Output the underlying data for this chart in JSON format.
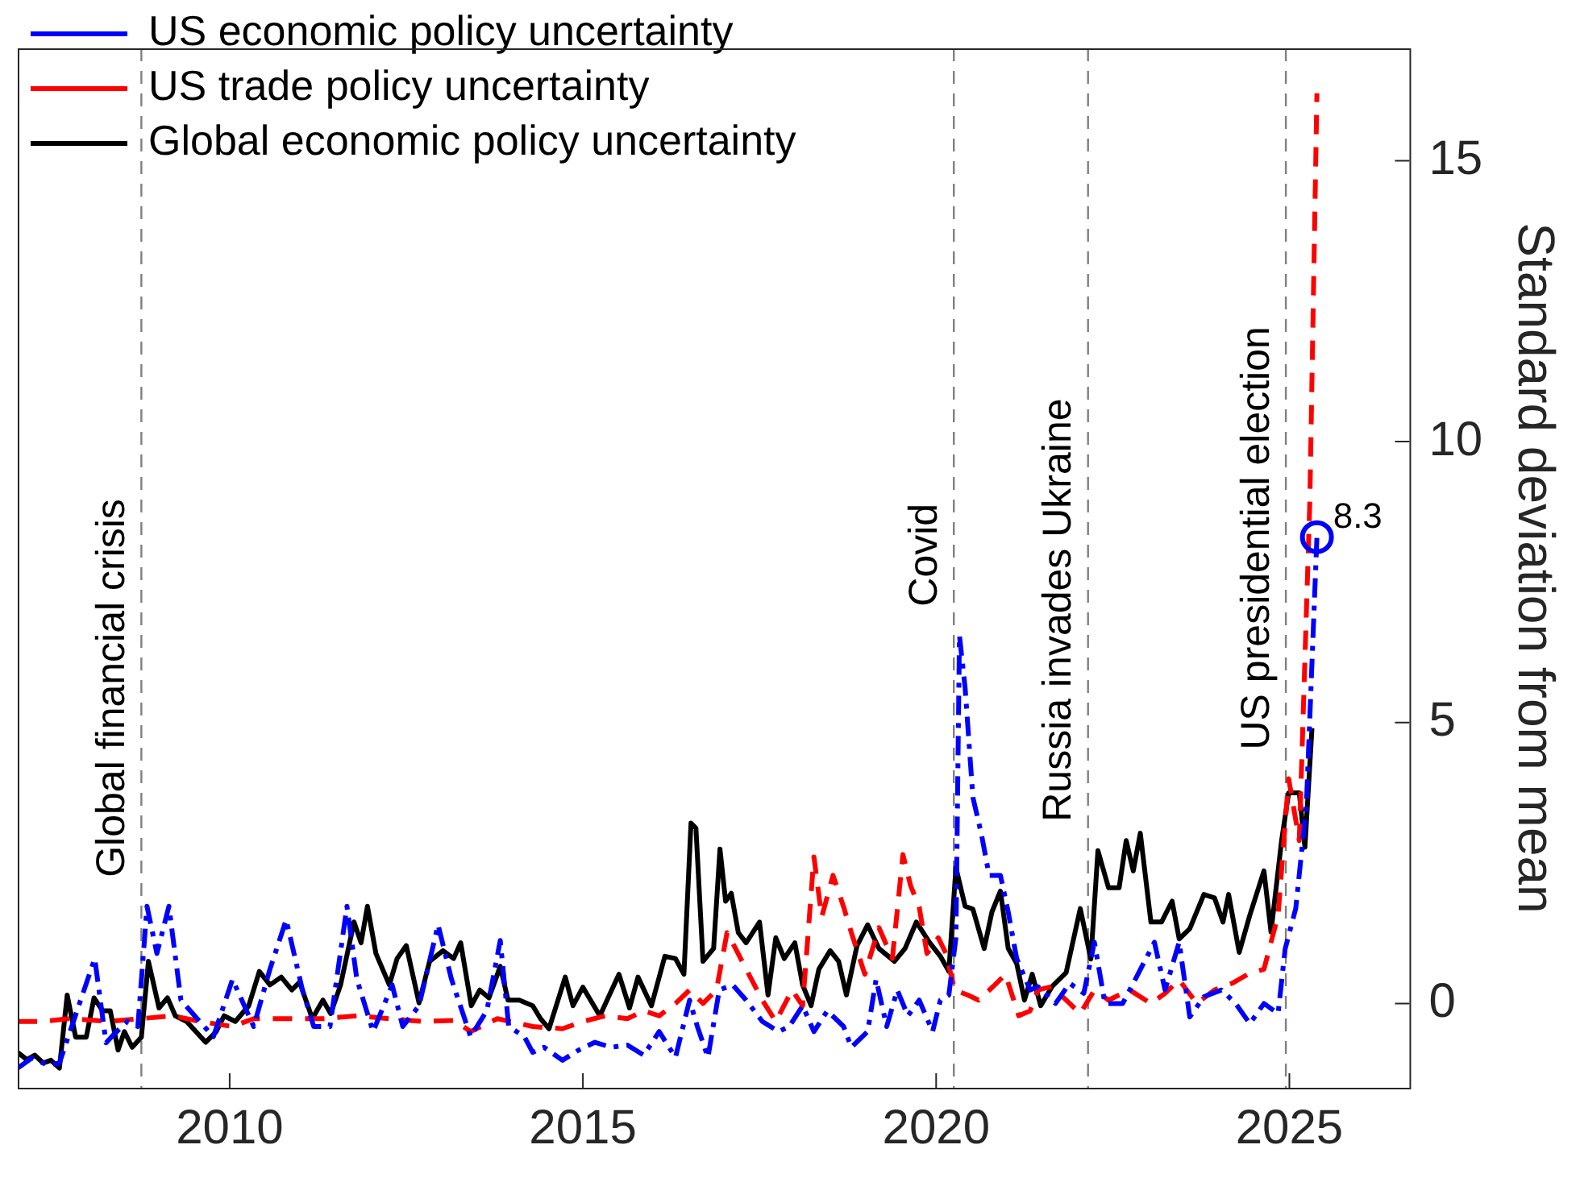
{
  "chart_data": {
    "type": "line",
    "ylabel": "Standard deviation from mean",
    "xlim": [
      2007,
      2026.7
    ],
    "ylim": [
      -1.5,
      17
    ],
    "xticks": [
      2010,
      2015,
      2020,
      2025
    ],
    "yticks": [
      0,
      5,
      10,
      15
    ],
    "legend": "top left",
    "series": [
      {
        "name": "US economic policy uncertainty",
        "color": "#0000ff",
        "line_style": "dashdot",
        "x": [
          2007.0,
          2007.2,
          2007.43,
          2007.59,
          2007.74,
          2008.09,
          2008.25,
          2008.36,
          2008.55,
          2008.7,
          2008.83,
          2008.97,
          2009.14,
          2009.31,
          2009.54,
          2009.77,
          2010.04,
          2010.34,
          2010.57,
          2010.8,
          2011.03,
          2011.19,
          2011.42,
          2011.66,
          2011.8,
          2012.03,
          2012.3,
          2012.45,
          2012.68,
          2012.95,
          2013.14,
          2013.41,
          2013.64,
          2013.83,
          2013.95,
          2014.17,
          2014.29,
          2014.45,
          2014.71,
          2014.94,
          2015.17,
          2015.4,
          2015.63,
          2015.86,
          2016.08,
          2016.31,
          2016.51,
          2016.62,
          2016.77,
          2016.93,
          2017.12,
          2017.31,
          2017.54,
          2017.77,
          2017.92,
          2018.11,
          2018.27,
          2018.46,
          2018.69,
          2018.8,
          2019.03,
          2019.15,
          2019.3,
          2019.45,
          2019.6,
          2019.76,
          2019.95,
          2020.06,
          2020.18,
          2020.28,
          2020.33,
          2020.41,
          2020.52,
          2020.64,
          2020.75,
          2020.91,
          2021.02,
          2021.14,
          2021.33,
          2021.44,
          2021.69,
          2021.89,
          2022.09,
          2022.24,
          2022.39,
          2022.64,
          2022.84,
          2023.09,
          2023.24,
          2023.44,
          2023.59,
          2023.79,
          2024.04,
          2024.24,
          2024.44,
          2024.64,
          2024.84,
          2024.94,
          2025.09,
          2025.24,
          2025.39
        ],
        "values": [
          -1.15,
          -0.97,
          -1.1,
          -1.06,
          -0.5,
          0.8,
          -0.7,
          -0.55,
          -0.32,
          -0.41,
          1.73,
          0.89,
          1.73,
          0.06,
          -0.27,
          -0.59,
          0.43,
          -0.41,
          0.61,
          1.49,
          0.24,
          -0.41,
          -0.41,
          1.73,
          0.43,
          -0.5,
          0.33,
          -0.41,
          -0.04,
          1.4,
          0.43,
          -0.59,
          -0.13,
          1.12,
          -0.41,
          -0.59,
          -0.87,
          -0.78,
          -1.01,
          -0.83,
          -0.69,
          -0.78,
          -0.74,
          -0.92,
          -0.5,
          -0.96,
          0.06,
          -0.41,
          -0.96,
          0.24,
          0.33,
          0.06,
          -0.32,
          -0.5,
          -0.41,
          -0.04,
          -0.5,
          -0.13,
          -0.41,
          -0.78,
          -0.5,
          0.43,
          -0.41,
          0.24,
          -0.22,
          0.06,
          -0.5,
          0.06,
          0.15,
          1.17,
          6.55,
          5.62,
          3.67,
          3.02,
          2.28,
          2.28,
          1.63,
          0.8,
          0.24,
          0.3,
          0,
          0.36,
          0.18,
          1.09,
          0,
          0,
          0.48,
          1.09,
          0.24,
          1.09,
          -0.24,
          0.12,
          0.24,
          0,
          -0.36,
          0,
          -0.18,
          0.97,
          1.69,
          3.51,
          8.3
        ]
      },
      {
        "name": "US trade policy uncertainty",
        "color": "#ff0000",
        "line_style": "dashed",
        "x": [
          2007.0,
          2007.36,
          2007.74,
          2008.28,
          2008.74,
          2009.2,
          2009.58,
          2010.04,
          2010.34,
          2010.8,
          2011.34,
          2011.8,
          2012.26,
          2012.72,
          2013.18,
          2013.41,
          2013.79,
          2014.29,
          2014.71,
          2015.0,
          2015.32,
          2015.63,
          2015.86,
          2016.08,
          2016.31,
          2016.51,
          2016.7,
          2016.89,
          2017.04,
          2017.16,
          2017.31,
          2017.54,
          2017.73,
          2017.96,
          2018.11,
          2018.27,
          2018.38,
          2018.54,
          2018.69,
          2018.8,
          2018.99,
          2019.19,
          2019.38,
          2019.53,
          2019.64,
          2019.76,
          2019.87,
          2020.03,
          2020.14,
          2020.26,
          2020.45,
          2020.6,
          2020.83,
          2020.98,
          2021.17,
          2021.33,
          2021.44,
          2021.64,
          2021.89,
          2022.04,
          2022.24,
          2022.44,
          2022.74,
          2023.04,
          2023.24,
          2023.44,
          2023.69,
          2023.94,
          2024.19,
          2024.44,
          2024.64,
          2024.84,
          2024.99,
          2025.14,
          2025.29,
          2025.39
        ],
        "values": [
          -0.32,
          -0.32,
          -0.27,
          -0.32,
          -0.27,
          -0.22,
          -0.32,
          -0.41,
          -0.27,
          -0.27,
          -0.27,
          -0.22,
          -0.27,
          -0.32,
          -0.3,
          -0.5,
          -0.27,
          -0.41,
          -0.45,
          -0.32,
          -0.22,
          -0.27,
          -0.13,
          -0.22,
          0.0,
          0.24,
          0.0,
          0.24,
          1.26,
          0.98,
          0.61,
          0.06,
          -0.32,
          0.24,
          -0.04,
          2.61,
          1.54,
          2.28,
          1.72,
          1.26,
          0.52,
          1.35,
          0.8,
          2.65,
          2.09,
          1.72,
          0.89,
          1.17,
          0.89,
          0.24,
          0.15,
          0.06,
          0.33,
          0.52,
          -0.22,
          -0.13,
          0.24,
          0.3,
          0,
          -0.18,
          0.24,
          0.06,
          0.24,
          0,
          0.18,
          0.42,
          0,
          0.24,
          0.36,
          0.54,
          0.61,
          1.57,
          4.0,
          2.9,
          8.96,
          16.2
        ]
      },
      {
        "name": "Global economic policy uncertainty",
        "color": "#000000",
        "line_style": "solid",
        "x": [
          2007.0,
          2007.13,
          2007.24,
          2007.36,
          2007.47,
          2007.59,
          2007.7,
          2007.82,
          2007.97,
          2008.08,
          2008.2,
          2008.31,
          2008.42,
          2008.51,
          2008.62,
          2008.75,
          2008.85,
          2009.0,
          2009.12,
          2009.23,
          2009.39,
          2009.66,
          2009.81,
          2009.92,
          2010.08,
          2010.27,
          2010.42,
          2010.57,
          2010.73,
          2010.88,
          2010.99,
          2011.17,
          2011.32,
          2011.43,
          2011.57,
          2011.76,
          2011.86,
          2011.95,
          2012.07,
          2012.26,
          2012.37,
          2012.5,
          2012.68,
          2012.83,
          2013.02,
          2013.17,
          2013.27,
          2013.42,
          2013.54,
          2013.67,
          2013.83,
          2013.94,
          2014.1,
          2014.29,
          2014.4,
          2014.52,
          2014.75,
          2014.86,
          2015.0,
          2015.24,
          2015.51,
          2015.66,
          2015.78,
          2015.97,
          2016.16,
          2016.31,
          2016.43,
          2016.53,
          2016.6,
          2016.7,
          2016.85,
          2016.94,
          2017.02,
          2017.1,
          2017.2,
          2017.31,
          2017.5,
          2017.62,
          2017.73,
          2017.85,
          2018.0,
          2018.11,
          2018.23,
          2018.34,
          2018.5,
          2018.62,
          2018.73,
          2018.88,
          2019.03,
          2019.19,
          2019.41,
          2019.56,
          2019.72,
          2019.91,
          2020.06,
          2020.18,
          2020.28,
          2020.41,
          2020.52,
          2020.68,
          2020.79,
          2020.91,
          2021.02,
          2021.14,
          2021.25,
          2021.36,
          2021.48,
          2021.64,
          2021.84,
          2022.04,
          2022.19,
          2022.29,
          2022.44,
          2022.59,
          2022.69,
          2022.79,
          2022.89,
          2023.04,
          2023.19,
          2023.34,
          2023.44,
          2023.59,
          2023.79,
          2023.94,
          2024.06,
          2024.14,
          2024.29,
          2024.44,
          2024.64,
          2024.74,
          2024.89,
          2024.99,
          2025.14,
          2025.22,
          2025.32
        ],
        "values": [
          -0.87,
          -1.0,
          -0.92,
          -1.06,
          -1.01,
          -1.15,
          0.15,
          -0.6,
          -0.6,
          0.1,
          -0.13,
          -0.13,
          -0.83,
          -0.5,
          -0.78,
          -0.6,
          0.75,
          -0.08,
          0.1,
          -0.22,
          -0.32,
          -0.69,
          -0.5,
          -0.22,
          -0.32,
          -0.04,
          0.57,
          0.33,
          0.47,
          0.24,
          0.38,
          -0.27,
          0.06,
          -0.18,
          0.33,
          1.45,
          1.08,
          1.73,
          0.89,
          0.33,
          0.8,
          1.03,
          0.01,
          0.75,
          0.94,
          0.8,
          1.08,
          -0.04,
          0.24,
          0.1,
          0.66,
          0.06,
          0.06,
          -0.04,
          -0.27,
          -0.45,
          0.47,
          -0.04,
          0.29,
          -0.22,
          0.52,
          -0.08,
          0.47,
          -0.04,
          0.84,
          0.8,
          0.52,
          3.21,
          3.12,
          0.75,
          0.98,
          2.75,
          1.82,
          1.96,
          1.26,
          1.08,
          1.45,
          0.15,
          1.17,
          0.8,
          1.08,
          0.33,
          -0.04,
          0.61,
          0.94,
          0.75,
          0.15,
          1.03,
          1.4,
          0.98,
          0.75,
          0.98,
          1.45,
          1.08,
          0.84,
          0.57,
          2.42,
          1.73,
          1.68,
          0.98,
          1.63,
          2.0,
          0.98,
          0.71,
          0.06,
          0.52,
          -0.04,
          0.3,
          0.55,
          1.69,
          0.79,
          2.72,
          2.06,
          2.06,
          2.9,
          2.36,
          3.03,
          1.45,
          1.45,
          1.82,
          1.15,
          1.33,
          1.94,
          1.88,
          1.45,
          1.94,
          0.91,
          1.57,
          2.36,
          1.27,
          2.9,
          3.75,
          3.75,
          2.78,
          4.9
        ]
      }
    ],
    "ref_lines": [
      {
        "axis": "x",
        "value": 2008.75,
        "label": "Global financial crisis",
        "color": "#808080",
        "line_style": "dashed"
      },
      {
        "axis": "x",
        "value": 2020.25,
        "label": "Covid",
        "color": "#808080",
        "line_style": "dashed"
      },
      {
        "axis": "x",
        "value": 2022.15,
        "label": "Russia invades Ukraine",
        "color": "#808080",
        "line_style": "dashed"
      },
      {
        "axis": "x",
        "value": 2024.95,
        "label": "US presidential election",
        "color": "#808080",
        "line_style": "dashed"
      }
    ],
    "annotations": [
      {
        "text": "8.3",
        "x": 2025.39,
        "y": 8.3
      }
    ]
  }
}
